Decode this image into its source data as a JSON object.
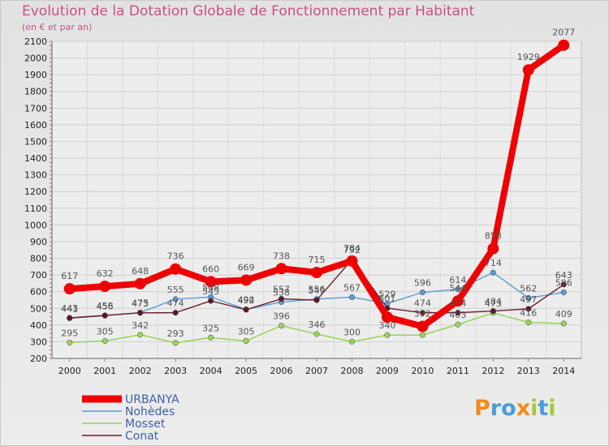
{
  "header": {
    "title": "Evolution de la Dotation Globale de Fonctionnement par Habitant",
    "subtitle": "(en € et par an)"
  },
  "logo": {
    "letters": [
      "P",
      "r",
      "o",
      "x",
      "i",
      "t",
      "i"
    ],
    "colors": [
      "#f08a1c",
      "#4c9cd8",
      "#4c9cd8",
      "#f08a1c",
      "#a6c93a",
      "#4c9cd8",
      "#a6c93a"
    ]
  },
  "chart_data": {
    "type": "line",
    "title": "Evolution de la Dotation Globale de Fonctionnement par Habitant",
    "subtitle": "(en € et par an)",
    "xlabel": "",
    "ylabel": "",
    "ylim": [
      200,
      2100
    ],
    "yticks": [
      200,
      300,
      400,
      500,
      600,
      700,
      800,
      900,
      1000,
      1100,
      1200,
      1300,
      1400,
      1500,
      1600,
      1700,
      1800,
      1900,
      2000,
      2100
    ],
    "x": [
      "2000",
      "2001",
      "2002",
      "2003",
      "2004",
      "2005",
      "2006",
      "2007",
      "2008",
      "2009",
      "2010",
      "2011",
      "2012",
      "2013",
      "2014"
    ],
    "series": [
      {
        "name": "Mosset",
        "color": "#8fd14f",
        "point_color": "#9ad35a",
        "values": [
          295,
          305,
          342,
          293,
          325,
          305,
          396,
          346,
          300,
          340,
          340,
          403,
          473,
          416,
          409
        ],
        "labels": [
          "295",
          "305",
          "342",
          "293",
          "325",
          "305",
          "396",
          "346",
          "300",
          "340",
          "",
          "403",
          "473",
          "416",
          "409"
        ]
      },
      {
        "name": "Nohèdes",
        "color": "#5b9bd5",
        "point_color": "#5b9bd5",
        "values": [
          441,
          456,
          475,
          555,
          568,
          494,
          538,
          556,
          567,
          529,
          596,
          614,
          714,
          562,
          596
        ],
        "labels": [
          "441",
          "456",
          "475",
          "555",
          "568",
          "494",
          "538",
          "556",
          "567",
          "529",
          "596",
          "614",
          "714",
          "562",
          "596"
        ]
      },
      {
        "name": "Conat",
        "color": "#6b1f2a",
        "point_color": "#5a1a24",
        "values": [
          443,
          458,
          473,
          474,
          545,
          492,
          557,
          549,
          792,
          501,
          474,
          474,
          484,
          497,
          643
        ],
        "labels": [
          "443",
          "458",
          "473",
          "474",
          "545",
          "492",
          "557",
          "549",
          "792",
          "501",
          "474",
          "474",
          "484",
          "497",
          "643"
        ]
      },
      {
        "name": "URBANYA",
        "color": "#ee0000",
        "point_color": "#ee0000",
        "values": [
          617,
          632,
          648,
          736,
          660,
          669,
          738,
          715,
          784,
          447,
          392,
          544,
          858,
          1929,
          2077
        ],
        "labels": [
          "617",
          "632",
          "648",
          "736",
          "660",
          "669",
          "738",
          "715",
          "784",
          "",
          "392",
          "544",
          "858",
          "1929",
          "2077"
        ]
      }
    ],
    "legend": [
      "URBANYA",
      "Nohèdes",
      "Mosset",
      "Conat"
    ],
    "legend_position": "bottom-left"
  }
}
